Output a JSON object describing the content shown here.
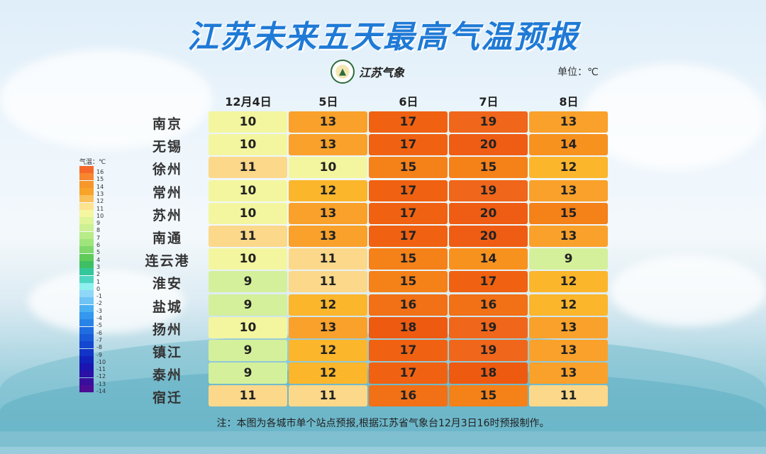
{
  "title": "江苏未来五天最高气温预报",
  "logo_text": "江苏气象",
  "unit": "单位：℃",
  "footnote": "注：本图为各城市单个站点预报,根据江苏省气象台12月3日16时预报制作。",
  "legend": {
    "title": "气温：℃",
    "labels": [
      "16",
      "15",
      "14",
      "13",
      "12",
      "11",
      "10",
      "9",
      "8",
      "7",
      "6",
      "5",
      "4",
      "3",
      "2",
      "1",
      "0",
      "-1",
      "-2",
      "-3",
      "-4",
      "-5",
      "-6",
      "-7",
      "-8",
      "-9",
      "-10",
      "-11",
      "-12",
      "-13",
      "-14"
    ],
    "colors": [
      "#f6682a",
      "#f7862e",
      "#f7972b",
      "#f8a329",
      "#fac05a",
      "#fde38f",
      "#f4f7a0",
      "#e0f49a",
      "#ccf093",
      "#b8ec88",
      "#9fe57c",
      "#7fd86b",
      "#5fcb58",
      "#3fbf63",
      "#33c79b",
      "#4fd6c0",
      "#8ef1ef",
      "#8fd7f7",
      "#6ec4f5",
      "#4bb0f2",
      "#3398ee",
      "#2984e7",
      "#1f6de0",
      "#1a5ad8",
      "#1447cf",
      "#1234c6",
      "#1122bb",
      "#1b14b0",
      "#2a10a6",
      "#3a0e9d",
      "#4c0c94"
    ]
  },
  "chart_data": {
    "type": "heatmap",
    "title": "江苏未来五天最高气温预报",
    "unit": "℃",
    "columns": [
      "12月4日",
      "5日",
      "6日",
      "7日",
      "8日"
    ],
    "rows": [
      "南京",
      "无锡",
      "徐州",
      "常州",
      "苏州",
      "南通",
      "连云港",
      "淮安",
      "盐城",
      "扬州",
      "镇江",
      "泰州",
      "宿迁"
    ],
    "values": [
      [
        10,
        13,
        17,
        19,
        13
      ],
      [
        10,
        13,
        17,
        20,
        14
      ],
      [
        11,
        10,
        15,
        15,
        12
      ],
      [
        10,
        12,
        17,
        19,
        13
      ],
      [
        10,
        13,
        17,
        20,
        15
      ],
      [
        11,
        13,
        17,
        20,
        13
      ],
      [
        10,
        11,
        15,
        14,
        9
      ],
      [
        9,
        11,
        15,
        17,
        12
      ],
      [
        9,
        12,
        16,
        16,
        12
      ],
      [
        10,
        13,
        18,
        19,
        13
      ],
      [
        9,
        12,
        17,
        19,
        13
      ],
      [
        9,
        12,
        17,
        18,
        13
      ],
      [
        11,
        11,
        16,
        15,
        11
      ]
    ],
    "color_scale": {
      "9": "#d4f09a",
      "10": "#f3f69e",
      "11": "#fbd88a",
      "12": "#fbb62c",
      "13": "#f9a12b",
      "14": "#f8921f",
      "15": "#f58119",
      "16": "#f27016",
      "17": "#f06211",
      "18": "#ee5a10",
      "19": "#f0661a",
      "20": "#ef5d14"
    }
  }
}
